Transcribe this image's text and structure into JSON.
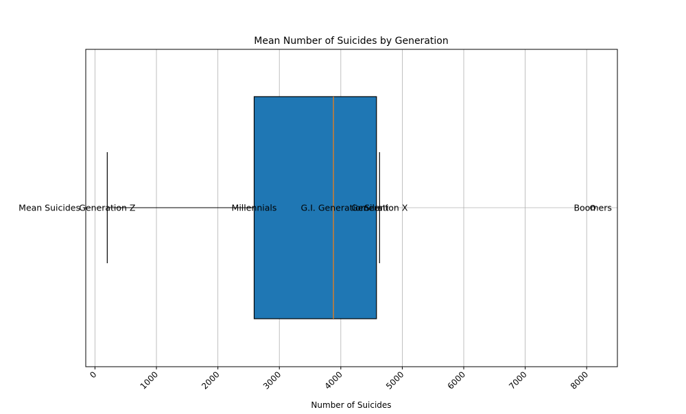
{
  "chart_data": {
    "type": "boxplot",
    "orientation": "horizontal",
    "title": "Mean Number of Suicides by Generation",
    "xlabel": "Number of Suicides",
    "ylabel": "",
    "ytick_label": "Mean Suicides",
    "xlim": [
      -150,
      8500
    ],
    "xticks": [
      0,
      1000,
      2000,
      3000,
      4000,
      5000,
      6000,
      7000,
      8000
    ],
    "tick_rotation_deg": 45,
    "grid": true,
    "box": {
      "whisker_low": 200,
      "q1": 2590,
      "median": 3880,
      "q3": 4580,
      "whisker_high": 4630,
      "outliers": [
        8100
      ]
    },
    "annotations": [
      {
        "label": "Generation Z",
        "x": 200
      },
      {
        "label": "Millennials",
        "x": 2590
      },
      {
        "label": "G.I. Generation",
        "x": 3880
      },
      {
        "label": "Silent",
        "x": 4580
      },
      {
        "label": "Generation X",
        "x": 4630
      },
      {
        "label": "Boomers",
        "x": 8100
      }
    ],
    "colors": {
      "box_fill": "#1f77b4",
      "median_line": "#ff7f0e",
      "grid": "#b0b0b0",
      "axes": "#000000"
    }
  }
}
